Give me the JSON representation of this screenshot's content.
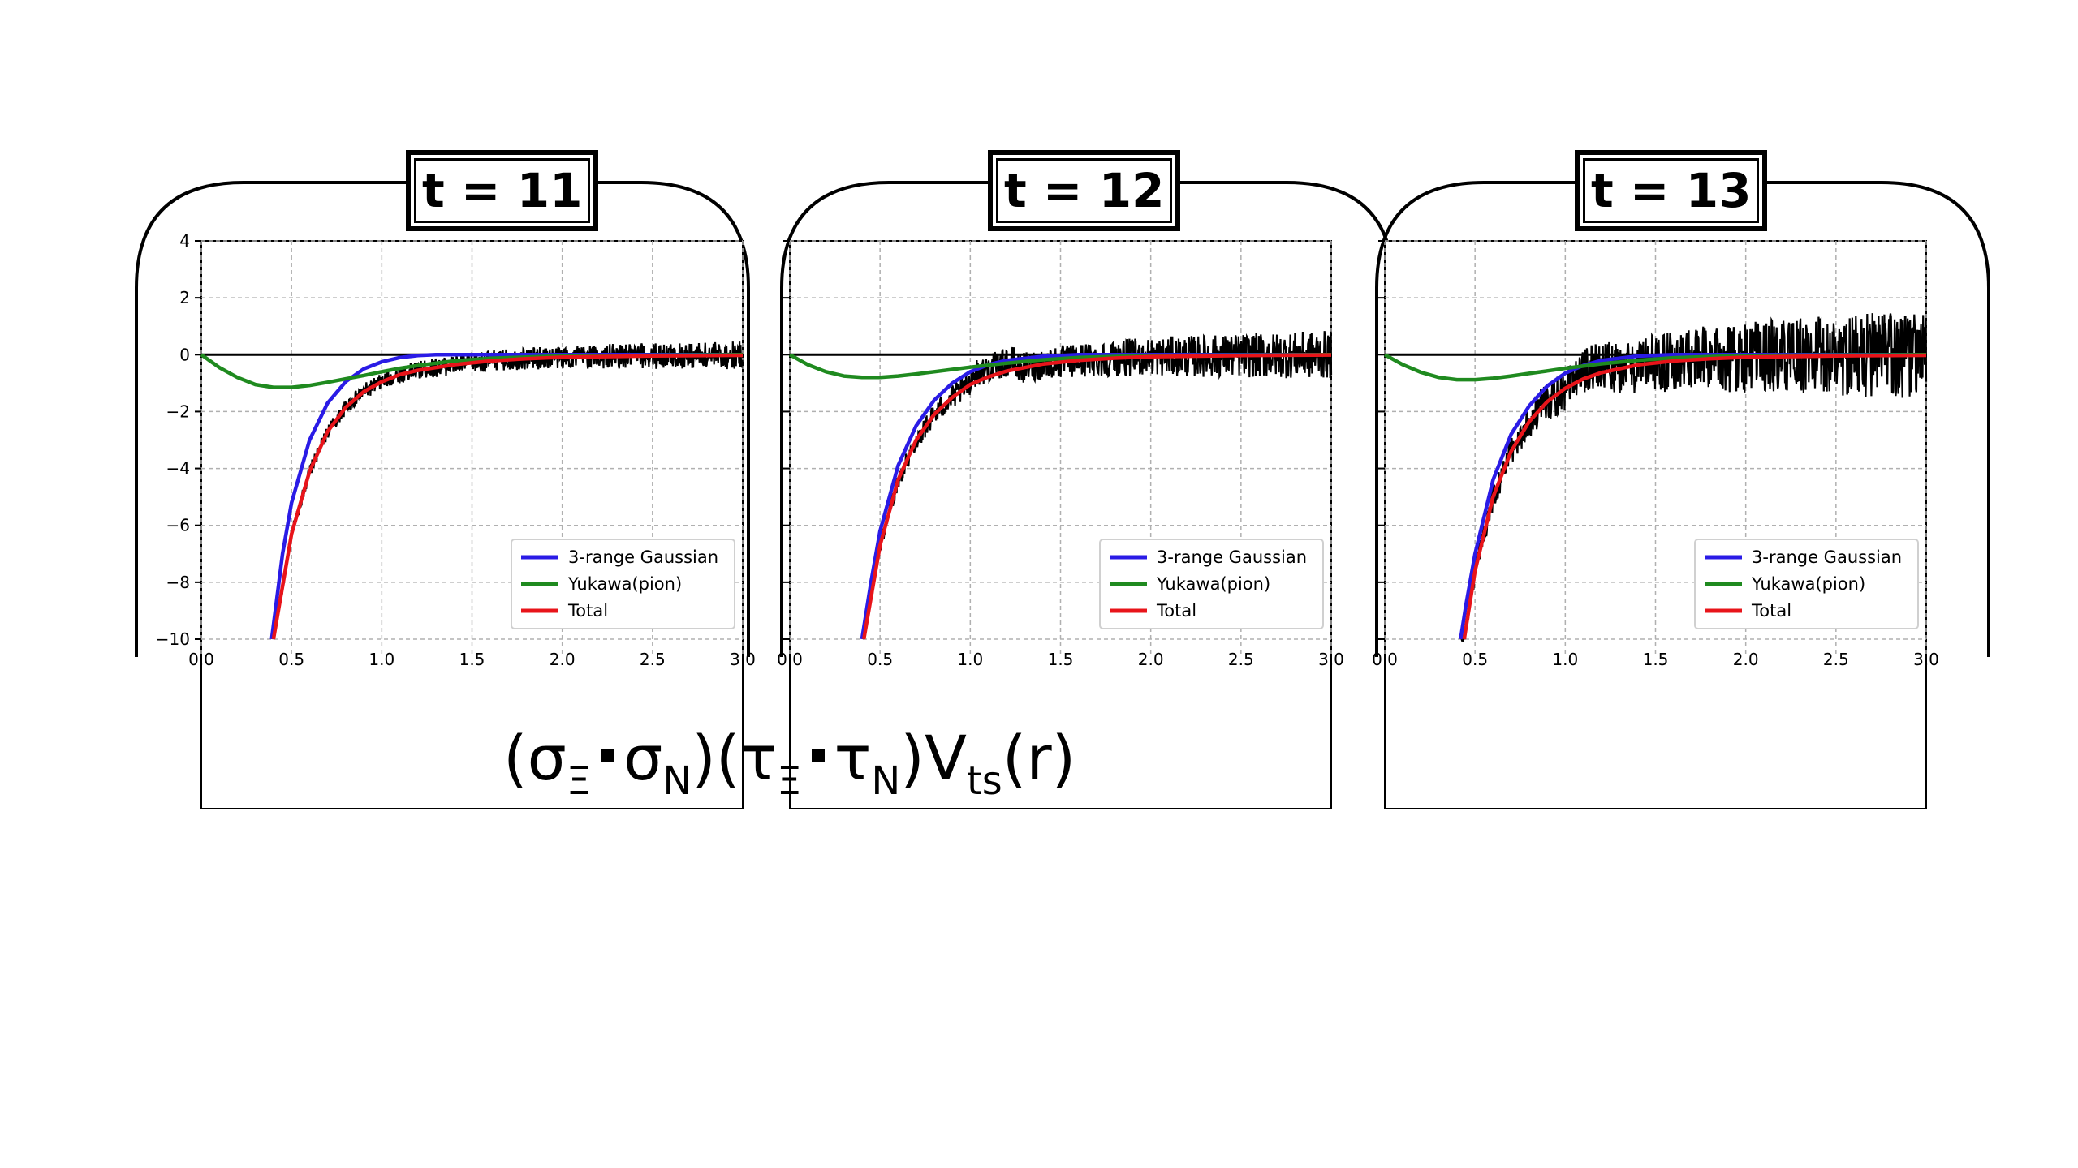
{
  "formula": {
    "open1": "(σ",
    "sub1": "Ξ",
    "mid1": "σ",
    "sub2": "N",
    "open2": ")(τ",
    "sub3": "Ξ",
    "mid2": "τ",
    "sub4": "N",
    "mid3": ")V",
    "sub5": "ts",
    "close": "(r)"
  },
  "colors": {
    "gaussian": "#2a1be6",
    "yukawa": "#1f8a1f",
    "total": "#e8141a",
    "data": "#000000",
    "frame": "#000000",
    "label_bg": "#ffffff"
  },
  "chart_data": [
    {
      "type": "line",
      "title": "t = 11",
      "xlim": [
        0.0,
        3.0
      ],
      "ylim": [
        -10,
        4
      ],
      "xticks": [
        "0.0",
        "0.5",
        "1.0",
        "1.5",
        "2.0",
        "2.5",
        "3.0"
      ],
      "yticks": [
        "4",
        "2",
        "0",
        "−2",
        "−4",
        "−6",
        "−8",
        "−10"
      ],
      "grid": true,
      "legend_position": "bottom-right",
      "series": [
        {
          "name": "3-range Gaussian",
          "x": [
            0.39,
            0.45,
            0.5,
            0.6,
            0.7,
            0.8,
            0.9,
            1.0,
            1.1,
            1.2,
            1.3,
            1.5,
            2.0,
            3.0
          ],
          "y": [
            -10.0,
            -7.0,
            -5.2,
            -3.0,
            -1.7,
            -0.95,
            -0.5,
            -0.25,
            -0.1,
            -0.03,
            0.0,
            0.0,
            0.0,
            0.0
          ]
        },
        {
          "name": "Yukawa(pion)",
          "x": [
            0.0,
            0.1,
            0.2,
            0.3,
            0.4,
            0.5,
            0.6,
            0.7,
            0.8,
            0.9,
            1.0,
            1.1,
            1.2,
            1.4,
            1.6,
            2.0,
            3.0
          ],
          "y": [
            0.0,
            -0.45,
            -0.8,
            -1.05,
            -1.15,
            -1.15,
            -1.08,
            -0.97,
            -0.85,
            -0.73,
            -0.6,
            -0.48,
            -0.38,
            -0.22,
            -0.13,
            -0.04,
            0.0
          ]
        },
        {
          "name": "Total",
          "x": [
            0.4,
            0.5,
            0.6,
            0.7,
            0.8,
            0.9,
            1.0,
            1.1,
            1.2,
            1.4,
            1.6,
            1.8,
            2.0,
            2.5,
            3.0
          ],
          "y": [
            -10.0,
            -6.3,
            -4.1,
            -2.7,
            -1.85,
            -1.3,
            -0.95,
            -0.7,
            -0.55,
            -0.35,
            -0.22,
            -0.14,
            -0.09,
            -0.04,
            -0.02
          ]
        }
      ],
      "noisy_data": {
        "x_start": 0.4,
        "x_end": 3.0,
        "noise_amplitude_start": 0.15,
        "noise_amplitude_end": 0.5
      }
    },
    {
      "type": "line",
      "title": "t = 12",
      "xlim": [
        0.0,
        3.0
      ],
      "ylim": [
        -10,
        4
      ],
      "xticks": [
        "0.0",
        "0.5",
        "1.0",
        "1.5",
        "2.0",
        "2.5",
        "3.0"
      ],
      "yticks": [],
      "grid": true,
      "legend_position": "bottom-right",
      "series": [
        {
          "name": "3-range Gaussian",
          "x": [
            0.4,
            0.45,
            0.5,
            0.6,
            0.7,
            0.8,
            0.9,
            1.0,
            1.1,
            1.2,
            1.4,
            1.6,
            2.0,
            3.0
          ],
          "y": [
            -10.0,
            -8.0,
            -6.2,
            -3.9,
            -2.5,
            -1.6,
            -1.0,
            -0.6,
            -0.35,
            -0.2,
            -0.06,
            0.0,
            0.0,
            0.0
          ]
        },
        {
          "name": "Yukawa(pion)",
          "x": [
            0.0,
            0.1,
            0.2,
            0.3,
            0.4,
            0.5,
            0.6,
            0.7,
            0.8,
            0.9,
            1.0,
            1.2,
            1.4,
            1.6,
            2.0,
            3.0
          ],
          "y": [
            0.0,
            -0.35,
            -0.6,
            -0.75,
            -0.8,
            -0.8,
            -0.75,
            -0.68,
            -0.6,
            -0.52,
            -0.44,
            -0.3,
            -0.18,
            -0.1,
            -0.03,
            0.0
          ]
        },
        {
          "name": "Total",
          "x": [
            0.41,
            0.5,
            0.6,
            0.7,
            0.8,
            0.9,
            1.0,
            1.1,
            1.2,
            1.4,
            1.6,
            1.8,
            2.0,
            2.5,
            3.0
          ],
          "y": [
            -10.0,
            -6.7,
            -4.4,
            -3.0,
            -2.1,
            -1.5,
            -1.05,
            -0.78,
            -0.58,
            -0.33,
            -0.2,
            -0.12,
            -0.07,
            -0.03,
            -0.01
          ]
        }
      ],
      "noisy_data": {
        "x_start": 0.42,
        "x_end": 3.0,
        "noise_amplitude_start": 0.2,
        "noise_amplitude_end": 0.85
      }
    },
    {
      "type": "line",
      "title": "t = 13",
      "xlim": [
        0.0,
        3.0
      ],
      "ylim": [
        -10,
        4
      ],
      "xticks": [
        "0.0",
        "0.5",
        "1.0",
        "1.5",
        "2.0",
        "2.5",
        "3.0"
      ],
      "yticks": [],
      "grid": true,
      "legend_position": "bottom-right",
      "series": [
        {
          "name": "3-range Gaussian",
          "x": [
            0.42,
            0.45,
            0.5,
            0.6,
            0.7,
            0.8,
            0.9,
            1.0,
            1.1,
            1.2,
            1.4,
            1.6,
            2.0,
            3.0
          ],
          "y": [
            -10.0,
            -8.8,
            -7.0,
            -4.4,
            -2.8,
            -1.8,
            -1.1,
            -0.65,
            -0.38,
            -0.2,
            -0.05,
            0.0,
            0.0,
            0.0
          ]
        },
        {
          "name": "Yukawa(pion)",
          "x": [
            0.0,
            0.1,
            0.2,
            0.3,
            0.4,
            0.5,
            0.6,
            0.7,
            0.8,
            0.9,
            1.0,
            1.2,
            1.4,
            1.6,
            2.0,
            3.0
          ],
          "y": [
            0.0,
            -0.35,
            -0.62,
            -0.8,
            -0.88,
            -0.88,
            -0.83,
            -0.75,
            -0.66,
            -0.57,
            -0.48,
            -0.32,
            -0.2,
            -0.11,
            -0.03,
            0.0
          ]
        },
        {
          "name": "Total",
          "x": [
            0.44,
            0.5,
            0.6,
            0.7,
            0.8,
            0.9,
            1.0,
            1.1,
            1.2,
            1.4,
            1.6,
            1.8,
            2.0,
            2.5,
            3.0
          ],
          "y": [
            -10.0,
            -7.6,
            -5.0,
            -3.4,
            -2.35,
            -1.65,
            -1.18,
            -0.85,
            -0.63,
            -0.36,
            -0.22,
            -0.14,
            -0.09,
            -0.04,
            -0.02
          ]
        }
      ],
      "noisy_data": {
        "x_start": 0.42,
        "x_end": 3.0,
        "noise_amplitude_start": 0.2,
        "noise_amplitude_end": 1.6
      }
    }
  ]
}
